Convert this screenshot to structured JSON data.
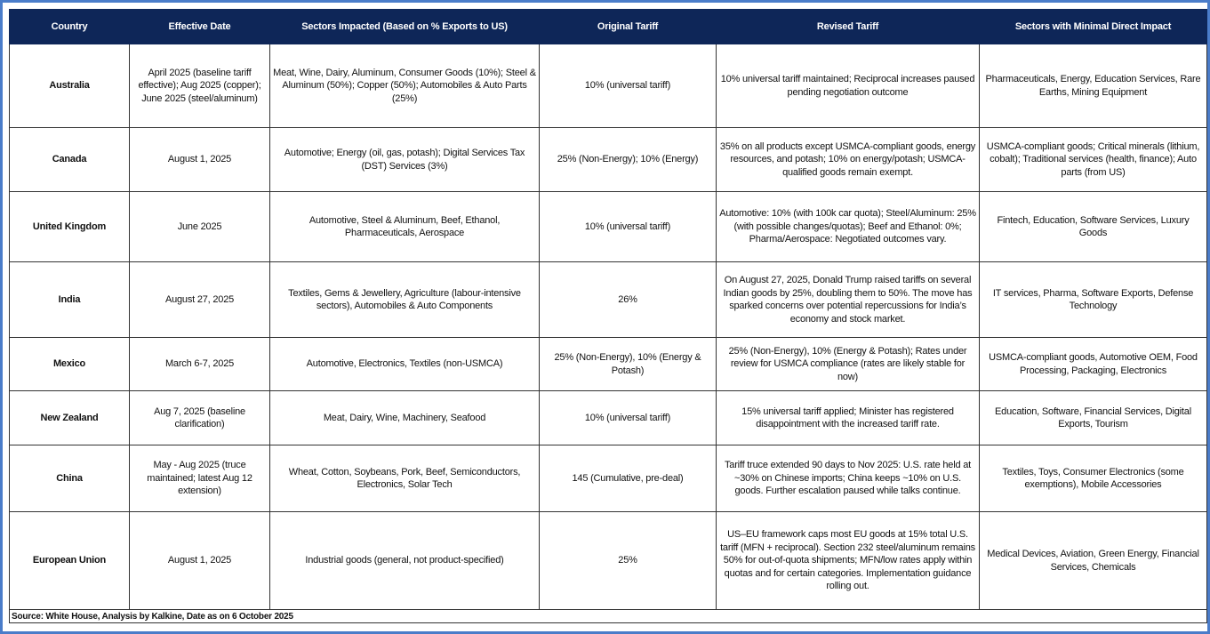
{
  "table": {
    "headers": [
      "Country",
      "Effective Date",
      "Sectors Impacted (Based on % Exports to US)",
      "Original Tariff",
      "Revised Tariff",
      "Sectors with Minimal Direct Impact"
    ],
    "rows": [
      [
        "Australia",
        "April 2025 (baseline tariff effective); Aug 2025 (copper); June 2025 (steel/aluminum)",
        "Meat, Wine, Dairy, Aluminum, Consumer Goods (10%); Steel & Aluminum (50%); Copper (50%); Automobiles & Auto Parts (25%)",
        "10% (universal tariff)",
        "10% universal tariff maintained; Reciprocal increases paused pending negotiation outcome",
        "Pharmaceuticals, Energy, Education Services, Rare Earths, Mining Equipment"
      ],
      [
        "Canada",
        "August 1, 2025",
        "Automotive; Energy (oil, gas, potash); Digital Services Tax (DST) Services (3%)",
        "25% (Non-Energy); 10% (Energy)",
        "35% on all products except USMCA-compliant goods, energy resources, and potash; 10% on energy/potash; USMCA-qualified goods remain exempt.",
        "USMCA-compliant goods; Critical minerals (lithium, cobalt); Traditional services (health, finance); Auto parts (from US)"
      ],
      [
        "United Kingdom",
        "June 2025",
        "Automotive, Steel & Aluminum, Beef, Ethanol, Pharmaceuticals, Aerospace",
        "10% (universal tariff)",
        "Automotive: 10% (with 100k car quota); Steel/Aluminum: 25% (with possible changes/quotas); Beef and Ethanol: 0%; Pharma/Aerospace: Negotiated outcomes vary.",
        "Fintech, Education, Software Services, Luxury Goods"
      ],
      [
        "India",
        "August 27, 2025",
        "Textiles, Gems & Jewellery, Agriculture (labour-intensive sectors), Automobiles & Auto Components",
        "26%",
        "On August 27, 2025, Donald Trump raised tariffs on several Indian goods by 25%, doubling them to 50%. The move has sparked concerns over potential repercussions for India’s economy and stock market.",
        "IT services, Pharma, Software Exports, Defense Technology"
      ],
      [
        "Mexico",
        "March 6-7, 2025",
        "Automotive, Electronics, Textiles (non-USMCA)",
        "25% (Non-Energy), 10% (Energy & Potash)",
        "25% (Non-Energy), 10% (Energy & Potash); Rates under review for USMCA compliance (rates are likely stable for now)",
        "USMCA-compliant goods, Automotive OEM, Food Processing, Packaging, Electronics"
      ],
      [
        "New Zealand",
        "Aug 7, 2025 (baseline clarification)",
        "Meat, Dairy, Wine, Machinery, Seafood",
        "10% (universal tariff)",
        "15% universal tariff applied; Minister has registered disappointment with the increased tariff rate.",
        "Education, Software, Financial Services, Digital Exports, Tourism"
      ],
      [
        "China",
        "May - Aug 2025 (truce maintained; latest Aug 12 extension)",
        "Wheat, Cotton, Soybeans, Pork, Beef, Semiconductors, Electronics, Solar Tech",
        "145 (Cumulative, pre-deal)",
        "Tariff truce extended 90 days to Nov 2025: U.S. rate held at ~30% on Chinese imports; China keeps ~10% on U.S. goods. Further escalation paused while talks continue.",
        "Textiles, Toys, Consumer Electronics (some exemptions), Mobile Accessories"
      ],
      [
        "European Union",
        "August 1, 2025",
        "Industrial goods (general, not product-specified)",
        "25%",
        "US–EU framework caps most EU goods at 15% total U.S. tariff (MFN + reciprocal). Section 232 steel/aluminum remains 50% for out-of-quota shipments; MFN/low rates apply within quotas and for certain categories. Implementation guidance rolling out.",
        "Medical Devices, Aviation, Green Energy, Financial Services, Chemicals"
      ]
    ],
    "source": "Source: White House, Analysis by Kalkine, Date as on 6 October 2025"
  },
  "colors": {
    "header_bg": "#0e2658",
    "frame": "#4a7cc9"
  }
}
